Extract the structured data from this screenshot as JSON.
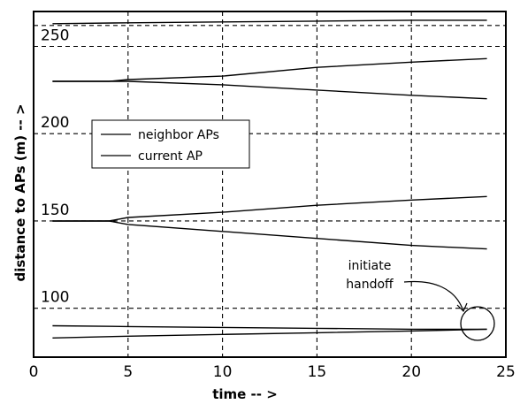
{
  "chart_data": {
    "type": "line",
    "xlabel": "time -- >",
    "ylabel": "distance to APs (m) -- >",
    "xlim": [
      0,
      25
    ],
    "ylim": [
      72,
      270
    ],
    "x_ticks": [
      0,
      5,
      10,
      15,
      20,
      25
    ],
    "y_ticks": [
      100,
      150,
      200,
      250
    ],
    "grid": true,
    "legend_position": "center-left",
    "legend": [
      "neighbor APs",
      "current AP"
    ],
    "colors": {
      "lines": "#000000",
      "grid": "#000000",
      "background": "#ffffff"
    },
    "series": [
      {
        "group": "neighbor APs",
        "x": [
          1,
          5,
          10,
          15,
          20,
          24
        ],
        "y": [
          263,
          263.5,
          264,
          264.5,
          265,
          265
        ]
      },
      {
        "group": "neighbor APs",
        "x": [
          1,
          4,
          5,
          10,
          15,
          20,
          24
        ],
        "y": [
          230,
          230,
          231,
          233,
          238,
          241,
          243
        ]
      },
      {
        "group": "neighbor APs",
        "x": [
          1,
          4,
          5,
          10,
          15,
          20,
          24
        ],
        "y": [
          230,
          230,
          230,
          228,
          225,
          222,
          220
        ]
      },
      {
        "group": "neighbor APs",
        "x": [
          1,
          4,
          5,
          10,
          15,
          20,
          24
        ],
        "y": [
          150,
          150,
          152,
          155,
          159,
          162,
          164
        ]
      },
      {
        "group": "neighbor APs",
        "x": [
          1,
          4,
          5,
          10,
          15,
          20,
          24
        ],
        "y": [
          150,
          150,
          148,
          144,
          140,
          136,
          134
        ]
      },
      {
        "group": "neighbor APs",
        "x": [
          1,
          5,
          10,
          15,
          20,
          24
        ],
        "y": [
          83,
          84,
          85,
          86,
          87,
          88
        ]
      },
      {
        "group": "current AP",
        "x": [
          1,
          5,
          10,
          15,
          20,
          24
        ],
        "y": [
          90,
          89.5,
          89,
          88.5,
          88,
          88
        ]
      }
    ],
    "annotations": [
      {
        "text": "initiate handoff",
        "x": 23.3,
        "y": 88
      }
    ]
  }
}
